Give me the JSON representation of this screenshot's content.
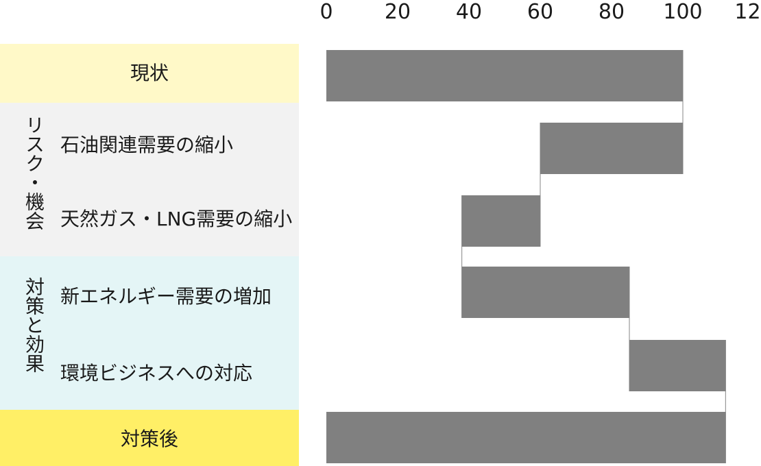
{
  "chart_data": {
    "type": "bar",
    "subtype": "waterfall-horizontal",
    "x_axis": {
      "ticks": [
        "0",
        "20",
        "40",
        "60",
        "80",
        "100",
        "120"
      ],
      "min": 0,
      "max": 120,
      "position": "top"
    },
    "rows": [
      {
        "label": "現状",
        "start": 0,
        "end": 100
      },
      {
        "label": "石油関連需要の縮小",
        "start": 60,
        "end": 100
      },
      {
        "label": "天然ガス・LNG需要の縮小",
        "start": 38,
        "end": 60
      },
      {
        "label": "新エネルギー需要の増加",
        "start": 38,
        "end": 85
      },
      {
        "label": "環境ビジネスへの対応",
        "start": 85,
        "end": 112
      },
      {
        "label": "対策後",
        "start": 0,
        "end": 112
      }
    ],
    "groups": [
      {
        "label": "リスク・機会"
      },
      {
        "label": "対策と効果"
      }
    ],
    "colors": {
      "bar": "#808080",
      "connector": "#999999",
      "current_bg": "#fff9c8",
      "risk_bg": "#f2f2f2",
      "measure_bg": "#e4f5f6",
      "after_bg": "#ffef66"
    },
    "grid": false,
    "legend": "none"
  }
}
